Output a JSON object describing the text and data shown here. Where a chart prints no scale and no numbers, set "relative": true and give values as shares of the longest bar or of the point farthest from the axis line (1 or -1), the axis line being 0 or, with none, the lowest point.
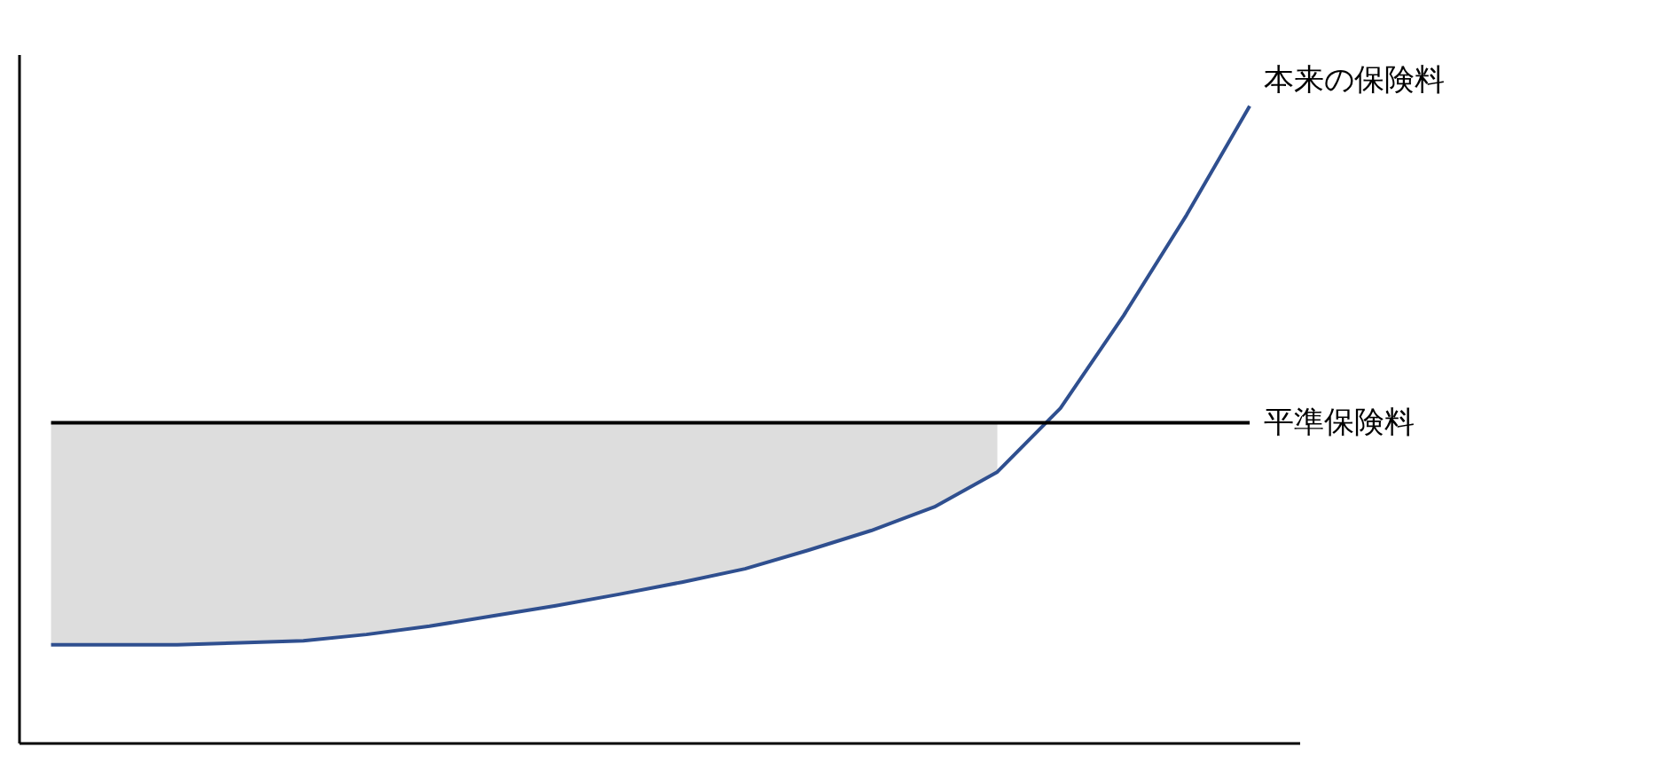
{
  "chart_data": {
    "type": "line",
    "relative": true,
    "marker": "none",
    "line_style": "solid",
    "categories": [
      null,
      null,
      null,
      null,
      null,
      null,
      null,
      null,
      null,
      null,
      null,
      null,
      null,
      null,
      null,
      null,
      null,
      null,
      null,
      null
    ],
    "series": [
      {
        "name": "本来の保険料",
        "color": "#2f4f8f",
        "values": [
          0.155,
          0.155,
          0.155,
          0.158,
          0.161,
          0.171,
          0.184,
          0.2,
          0.216,
          0.234,
          0.253,
          0.274,
          0.303,
          0.334,
          0.371,
          0.426,
          0.526,
          0.671,
          0.829,
          1.0
        ]
      },
      {
        "name": "平準保険料",
        "color": "#000000",
        "values": [
          0.503,
          0.503,
          0.503,
          0.503,
          0.503,
          0.503,
          0.503,
          0.503,
          0.503,
          0.503,
          0.503,
          0.503,
          0.503,
          0.503,
          0.503,
          0.503,
          0.503,
          0.503,
          0.503,
          0.503
        ],
        "lower": [
          0.155,
          0.155,
          0.155,
          0.158,
          0.161,
          0.171,
          0.184,
          0.2,
          0.216,
          0.234,
          0.253,
          0.274,
          0.303,
          0.334,
          0.371,
          0.426,
          null,
          null,
          null,
          null
        ],
        "upper": [
          0.503,
          0.503,
          0.503,
          0.503,
          0.503,
          0.503,
          0.503,
          0.503,
          0.503,
          0.503,
          0.503,
          0.503,
          0.503,
          0.503,
          0.503,
          0.503,
          null,
          null,
          null,
          null
        ]
      }
    ]
  }
}
